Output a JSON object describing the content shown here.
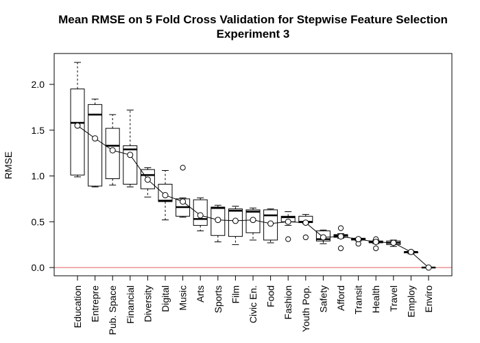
{
  "chart_data": {
    "type": "boxplot",
    "title": "Mean RMSE on 5 Fold Cross Validation for Stepwise Feature Selection",
    "subtitle": "Experiment 3",
    "xlabel": "",
    "ylabel": "RMSE",
    "ylim": [
      -0.08,
      2.35
    ],
    "yticks": [
      "0.0",
      "0.5",
      "1.0",
      "1.5",
      "2.0"
    ],
    "ytick_values": [
      0,
      0.5,
      1.0,
      1.5,
      2.0
    ],
    "reference_line": {
      "y": 0.0,
      "color": "#e06060"
    },
    "mean_line": true,
    "categories": [
      "Education",
      "Entrepre",
      "Pub. Space",
      "Financial",
      "Diversity",
      "Digital",
      "Music",
      "Arts",
      "Sports",
      "Film",
      "Civic En.",
      "Food",
      "Fashion",
      "Youth Pop.",
      "Safety",
      "Afford",
      "Transit",
      "Health",
      "Travel",
      "Employ",
      "Enviro"
    ],
    "boxes": [
      {
        "min": 0.99,
        "q1": 1.01,
        "median": 1.58,
        "q3": 1.95,
        "max": 2.24,
        "mean": 1.55,
        "outliers": []
      },
      {
        "min": 0.88,
        "q1": 0.89,
        "median": 1.67,
        "q3": 1.78,
        "max": 1.84,
        "mean": 1.41,
        "outliers": []
      },
      {
        "min": 0.9,
        "q1": 0.97,
        "median": 1.33,
        "q3": 1.52,
        "max": 1.67,
        "mean": 1.28,
        "outliers": []
      },
      {
        "min": 0.88,
        "q1": 0.91,
        "median": 1.29,
        "q3": 1.33,
        "max": 1.72,
        "mean": 1.23,
        "outliers": []
      },
      {
        "min": 0.77,
        "q1": 0.86,
        "median": 1.01,
        "q3": 1.07,
        "max": 1.09,
        "mean": 0.96,
        "outliers": []
      },
      {
        "min": 0.52,
        "q1": 0.72,
        "median": 0.73,
        "q3": 0.91,
        "max": 1.06,
        "mean": 0.79,
        "outliers": []
      },
      {
        "min": 0.55,
        "q1": 0.56,
        "median": 0.66,
        "q3": 0.75,
        "max": 0.76,
        "mean": 0.72,
        "outliers": [
          1.09
        ]
      },
      {
        "min": 0.4,
        "q1": 0.46,
        "median": 0.53,
        "q3": 0.74,
        "max": 0.76,
        "mean": 0.57,
        "outliers": []
      },
      {
        "min": 0.28,
        "q1": 0.35,
        "median": 0.65,
        "q3": 0.66,
        "max": 0.68,
        "mean": 0.52,
        "outliers": []
      },
      {
        "min": 0.25,
        "q1": 0.34,
        "median": 0.62,
        "q3": 0.64,
        "max": 0.67,
        "mean": 0.51,
        "outliers": []
      },
      {
        "min": 0.3,
        "q1": 0.38,
        "median": 0.61,
        "q3": 0.63,
        "max": 0.65,
        "mean": 0.52,
        "outliers": []
      },
      {
        "min": 0.27,
        "q1": 0.3,
        "median": 0.57,
        "q3": 0.63,
        "max": 0.64,
        "mean": 0.48,
        "outliers": []
      },
      {
        "min": 0.46,
        "q1": 0.5,
        "median": 0.55,
        "q3": 0.56,
        "max": 0.61,
        "mean": 0.5,
        "outliers": [
          0.31
        ]
      },
      {
        "min": 0.48,
        "q1": 0.49,
        "median": 0.5,
        "q3": 0.56,
        "max": 0.58,
        "mean": 0.49,
        "outliers": [
          0.33
        ]
      },
      {
        "min": 0.26,
        "q1": 0.29,
        "median": 0.31,
        "q3": 0.4,
        "max": 0.41,
        "mean": 0.33,
        "outliers": []
      },
      {
        "min": 0.32,
        "q1": 0.33,
        "median": 0.35,
        "q3": 0.36,
        "max": 0.37,
        "mean": 0.34,
        "outliers": [
          0.43,
          0.21
        ]
      },
      {
        "min": 0.29,
        "q1": 0.3,
        "median": 0.31,
        "q3": 0.32,
        "max": 0.32,
        "mean": 0.31,
        "outliers": [
          0.26
        ]
      },
      {
        "min": 0.26,
        "q1": 0.27,
        "median": 0.28,
        "q3": 0.29,
        "max": 0.3,
        "mean": 0.28,
        "outliers": [
          0.31,
          0.21
        ]
      },
      {
        "min": 0.23,
        "q1": 0.25,
        "median": 0.27,
        "q3": 0.29,
        "max": 0.3,
        "mean": 0.27,
        "outliers": []
      },
      {
        "min": 0.15,
        "q1": 0.16,
        "median": 0.17,
        "q3": 0.17,
        "max": 0.18,
        "mean": 0.17,
        "outliers": []
      },
      {
        "min": 0.0,
        "q1": 0.0,
        "median": 0.0,
        "q3": 0.0,
        "max": 0.0,
        "mean": 0.0,
        "outliers": []
      }
    ]
  }
}
